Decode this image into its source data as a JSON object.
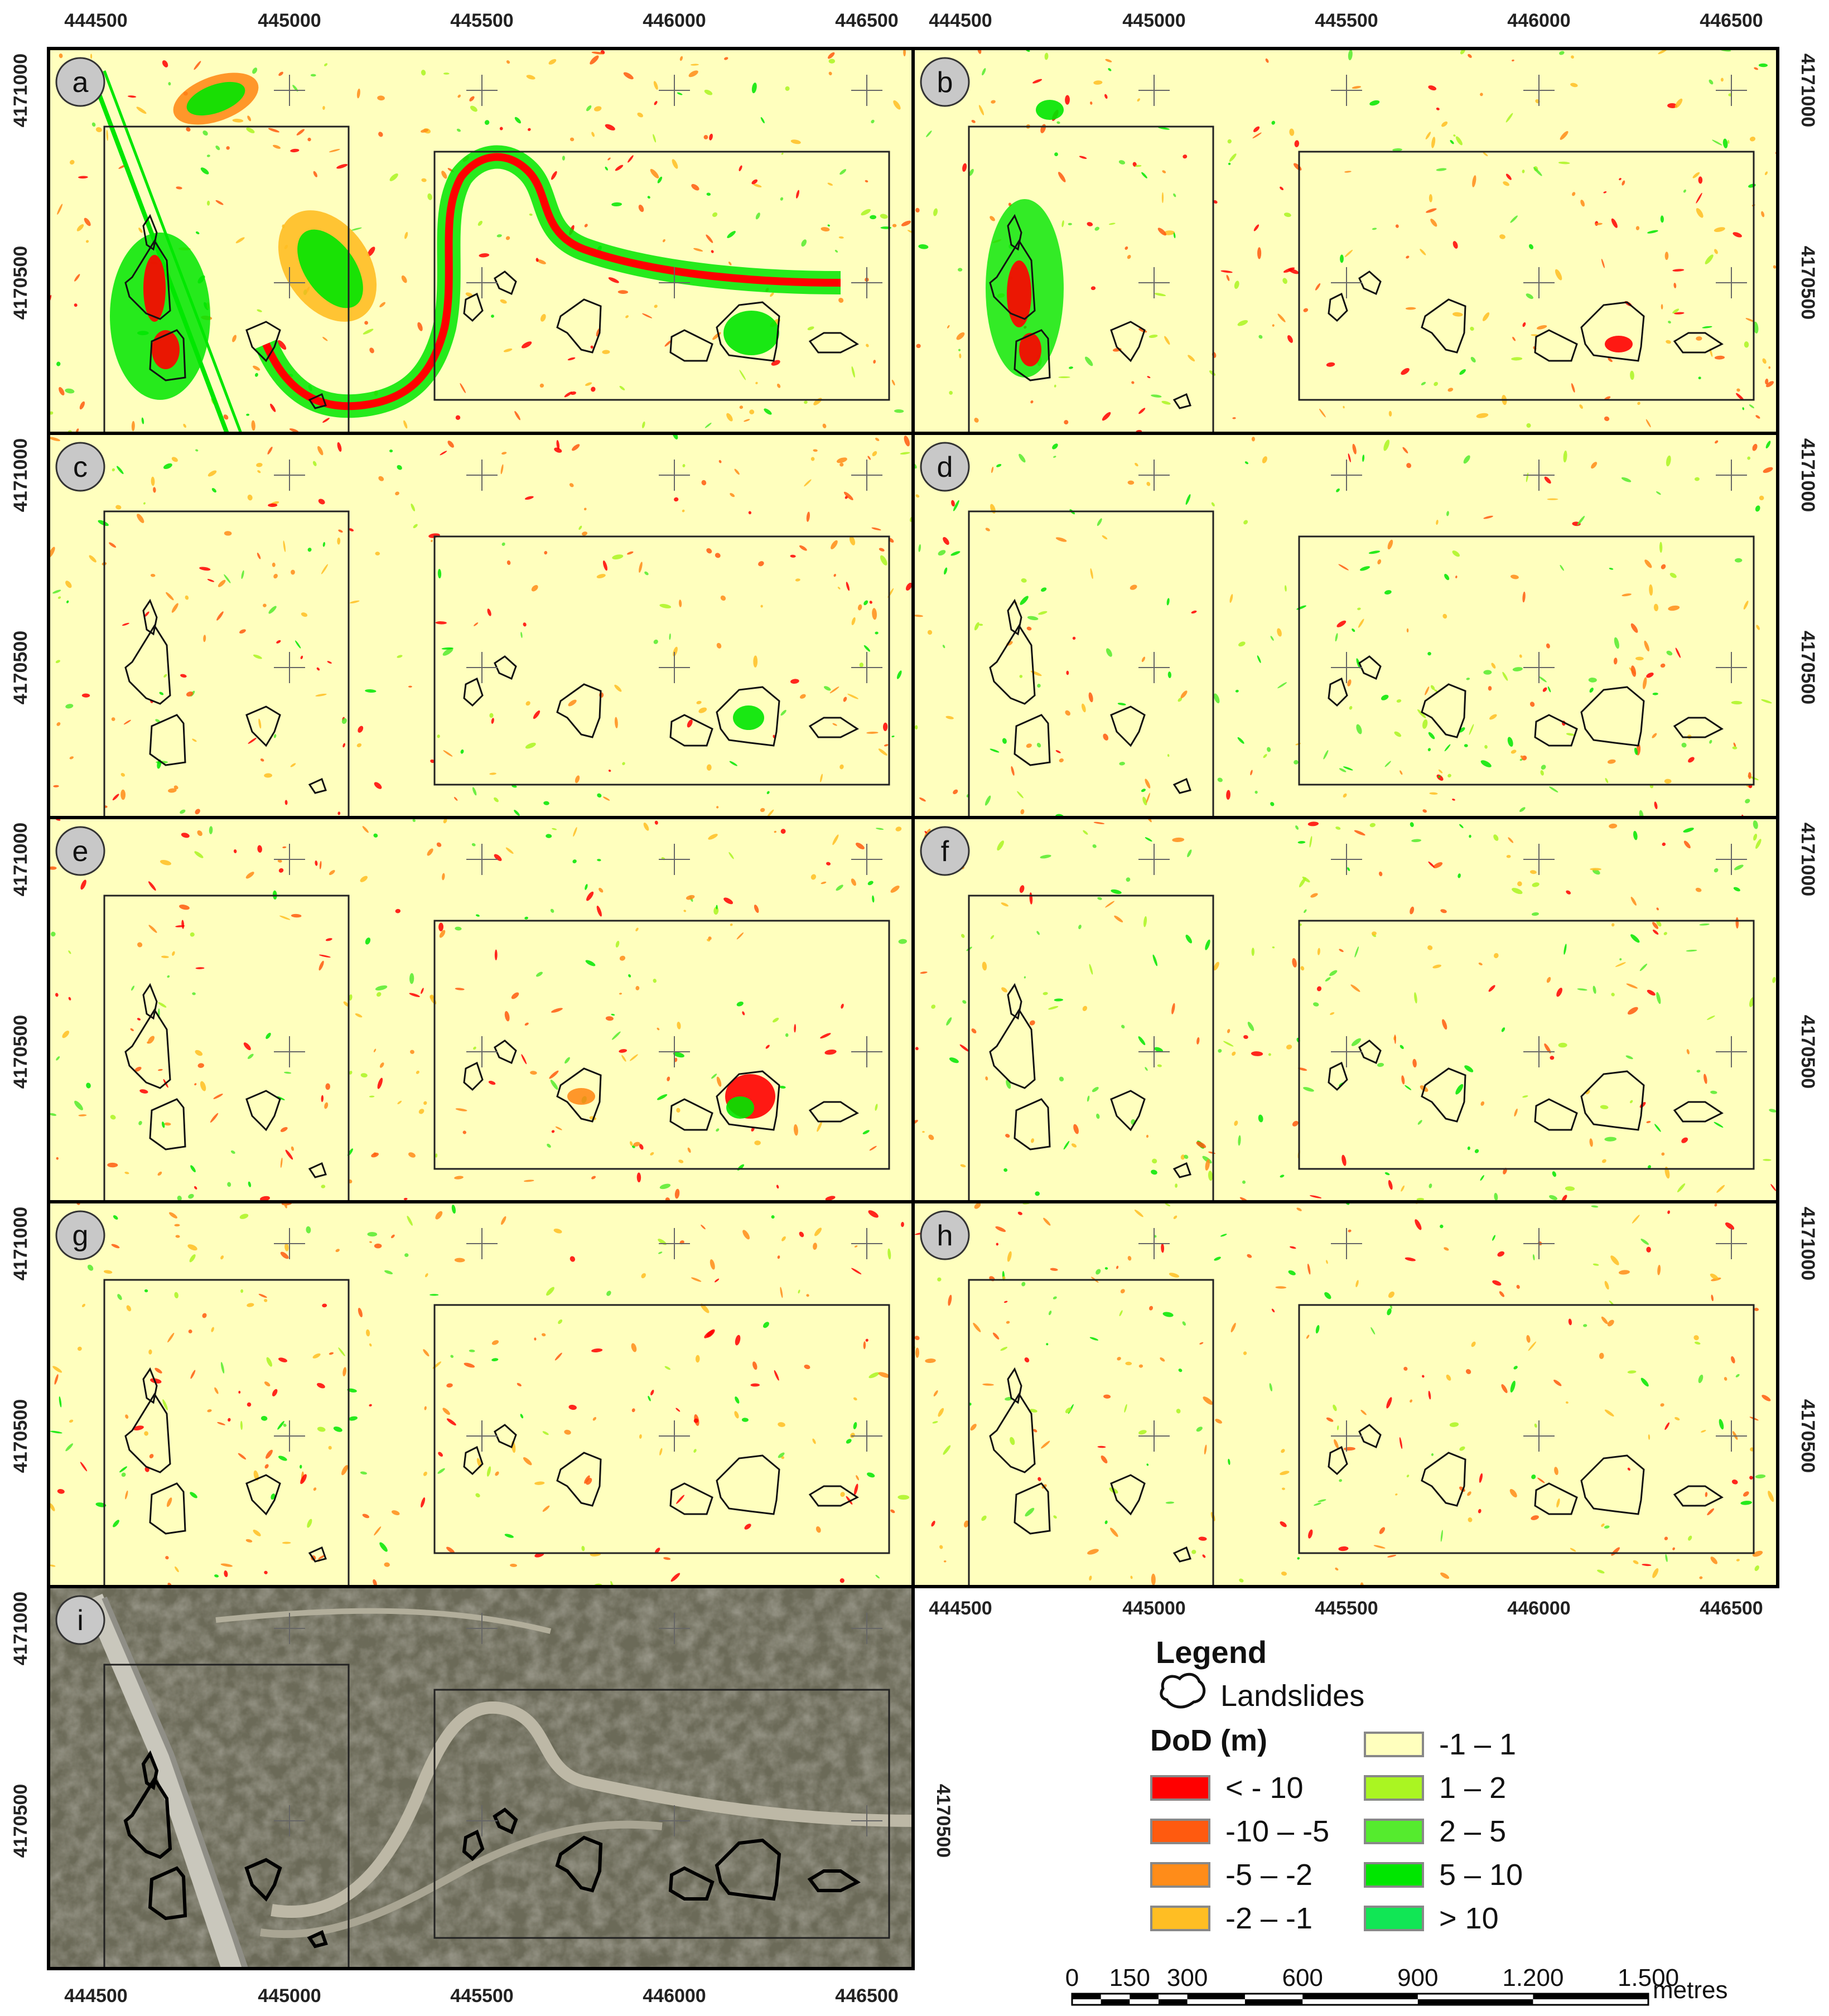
{
  "panel_labels": [
    "a",
    "b",
    "c",
    "d",
    "e",
    "f",
    "g",
    "h",
    "i"
  ],
  "x_ticks": [
    "444500",
    "445000",
    "445500",
    "446000",
    "446500"
  ],
  "y_ticks": [
    "4171000",
    "4170500"
  ],
  "legend": {
    "title": "Legend",
    "landslides_label": "Landslides",
    "dod_title": "DoD (m)",
    "classes_left": [
      {
        "label": "< - 10",
        "color": "#ff0000"
      },
      {
        "label": "-10 – -5",
        "color": "#ff5a0f"
      },
      {
        "label": "-5 – -2",
        "color": "#ff8c19"
      },
      {
        "label": "-2 – -1",
        "color": "#ffbe23"
      }
    ],
    "classes_right": [
      {
        "label": "-1 – 1",
        "color": "#ffffbe"
      },
      {
        "label": "1 – 2",
        "color": "#aaf522"
      },
      {
        "label": "2 – 5",
        "color": "#55eb2e"
      },
      {
        "label": "5 – 10",
        "color": "#00e600"
      },
      {
        "label": "> 10",
        "color": "#11e655"
      }
    ]
  },
  "scale_bar": {
    "ticks": [
      "0",
      "150",
      "300",
      "600",
      "900",
      "1.200",
      "1.500"
    ],
    "unit": "metres"
  },
  "colors": {
    "background_map": "#ffffbe",
    "loss_red": "#ff0000",
    "loss_orange": "#ff8c19",
    "loss_yellow": "#ffbe23",
    "gain_green": "#00e600",
    "gain_light": "#aaf522",
    "orthophoto": "#6b6a58"
  }
}
